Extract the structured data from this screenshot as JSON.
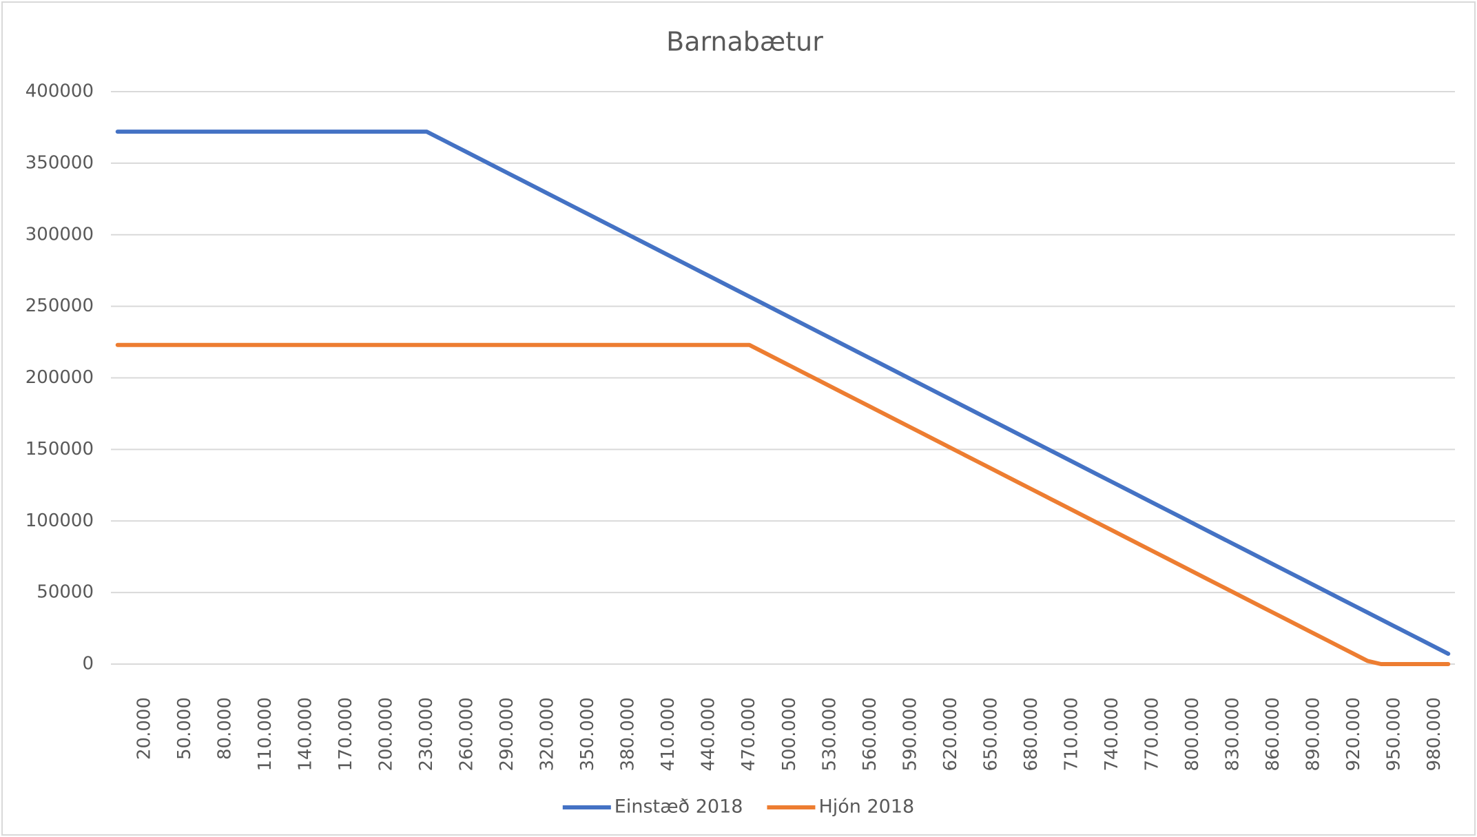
{
  "chart_data": {
    "type": "line",
    "title": "Barnabætur",
    "categories": [
      null,
      null,
      "20.000",
      null,
      null,
      "50.000",
      null,
      null,
      "80.000",
      null,
      null,
      "110.000",
      null,
      null,
      "140.000",
      null,
      null,
      "170.000",
      null,
      null,
      "200.000",
      null,
      null,
      "230.000",
      null,
      null,
      "260.000",
      null,
      null,
      "290.000",
      null,
      null,
      "320.000",
      null,
      null,
      "350.000",
      null,
      null,
      "380.000",
      null,
      null,
      "410.000",
      null,
      null,
      "440.000",
      null,
      null,
      "470.000",
      null,
      null,
      "500.000",
      null,
      null,
      "530.000",
      null,
      null,
      "560.000",
      null,
      null,
      "590.000",
      null,
      null,
      "620.000",
      null,
      null,
      "650.000",
      null,
      null,
      "680.000",
      null,
      null,
      "710.000",
      null,
      null,
      "740.000",
      null,
      null,
      "770.000",
      null,
      null,
      "800.000",
      null,
      null,
      "830.000",
      null,
      null,
      "860.000",
      null,
      null,
      "890.000",
      null,
      null,
      "920.000",
      null,
      null,
      "950.000",
      null,
      null,
      "980.000",
      null
    ],
    "series": [
      {
        "name": "Einstæð 2018",
        "color": "#4472c4",
        "values": [
          372000,
          372000,
          372000,
          372000,
          372000,
          372000,
          372000,
          372000,
          372000,
          372000,
          372000,
          372000,
          372000,
          372000,
          372000,
          372000,
          372000,
          372000,
          372000,
          372000,
          372000,
          372000,
          372000,
          372000,
          367200,
          362400,
          357600,
          352800,
          348000,
          343200,
          338400,
          333600,
          328800,
          324000,
          319200,
          314400,
          309600,
          304800,
          300000,
          295200,
          290400,
          285600,
          280800,
          276000,
          271200,
          266400,
          261600,
          256800,
          252000,
          247200,
          242400,
          237600,
          232800,
          228000,
          223200,
          218400,
          213600,
          208800,
          204000,
          199200,
          194400,
          189600,
          184800,
          180000,
          175200,
          170400,
          165600,
          160800,
          156000,
          151200,
          146400,
          141600,
          136800,
          132000,
          127200,
          122400,
          117600,
          112800,
          108000,
          103200,
          98400,
          93600,
          88800,
          84000,
          79200,
          74400,
          69600,
          64800,
          60000,
          55200,
          50400,
          45600,
          40800,
          36000,
          31200,
          26400,
          21600,
          16800,
          12000,
          7200
        ]
      },
      {
        "name": "Hjón 2018",
        "color": "#ed7d31",
        "values": [
          223000,
          223000,
          223000,
          223000,
          223000,
          223000,
          223000,
          223000,
          223000,
          223000,
          223000,
          223000,
          223000,
          223000,
          223000,
          223000,
          223000,
          223000,
          223000,
          223000,
          223000,
          223000,
          223000,
          223000,
          223000,
          223000,
          223000,
          223000,
          223000,
          223000,
          223000,
          223000,
          223000,
          223000,
          223000,
          223000,
          223000,
          223000,
          223000,
          223000,
          223000,
          223000,
          223000,
          223000,
          223000,
          223000,
          223000,
          223000,
          218200,
          213400,
          208600,
          203800,
          199000,
          194200,
          189400,
          184600,
          179800,
          175000,
          170200,
          165400,
          160600,
          155800,
          151000,
          146200,
          141400,
          136600,
          131800,
          127000,
          122200,
          117400,
          112600,
          107800,
          103000,
          98200,
          93400,
          88600,
          83800,
          79000,
          74200,
          69400,
          64600,
          59800,
          55000,
          50200,
          45400,
          40600,
          35800,
          31000,
          26200,
          21400,
          16600,
          11800,
          7000,
          2200,
          0,
          0,
          0,
          0,
          0,
          0
        ]
      }
    ],
    "ylim": [
      0,
      400000
    ],
    "yticks": [
      0,
      50000,
      100000,
      150000,
      200000,
      250000,
      300000,
      350000,
      400000
    ],
    "grid": true,
    "legend": "bottom"
  }
}
